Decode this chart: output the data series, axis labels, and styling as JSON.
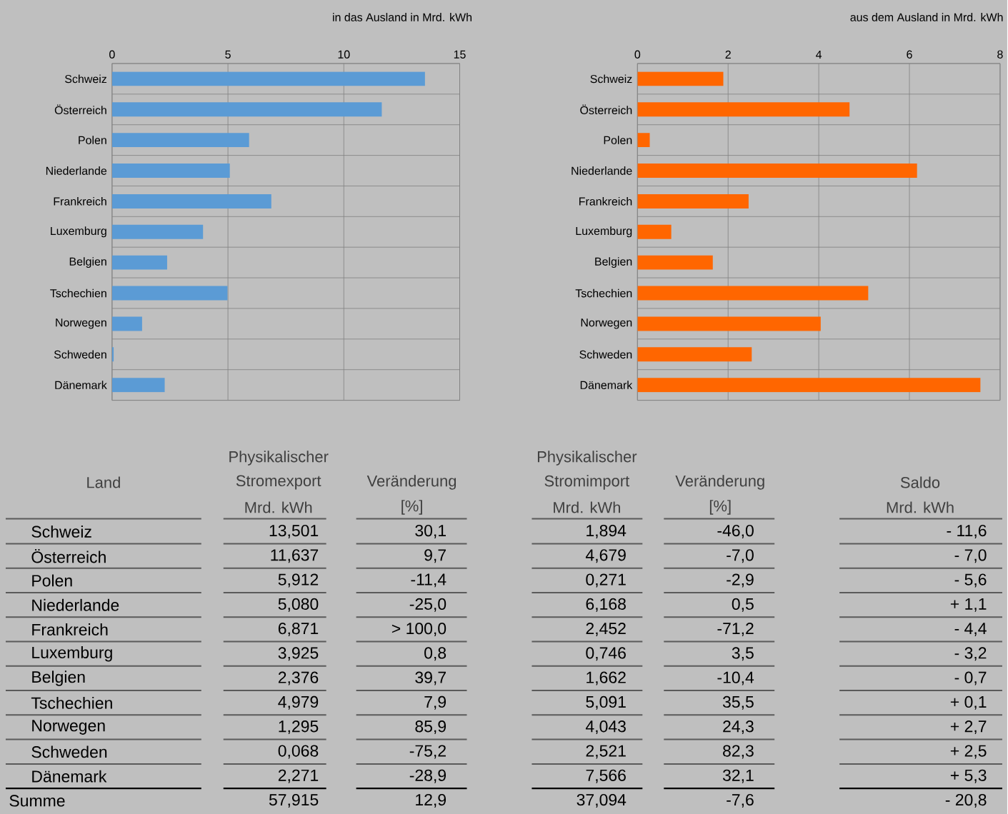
{
  "chart_data": [
    {
      "type": "bar",
      "orientation": "horizontal",
      "title": "in das Ausland in Mrd. kWh",
      "categories": [
        "Schweiz",
        "Österreich",
        "Polen",
        "Niederlande",
        "Frankreich",
        "Luxemburg",
        "Belgien",
        "Tschechien",
        "Norwegen",
        "Schweden",
        "Dänemark"
      ],
      "values": [
        13.501,
        11.637,
        5.912,
        5.08,
        6.871,
        3.925,
        2.376,
        4.979,
        1.295,
        0.068,
        2.271
      ],
      "value_labels": [
        "13,501",
        "11,637",
        "5,912",
        "5,080",
        "6,871",
        "3,925",
        "2,376",
        "4,979",
        "1,295",
        "0,068",
        "2,271"
      ],
      "color": "#5b9bd5",
      "xlim": [
        0,
        15
      ],
      "xticks": [
        0,
        5,
        10,
        15
      ],
      "grid": true
    },
    {
      "type": "bar",
      "orientation": "horizontal",
      "title": "aus dem Ausland in Mrd. kWh",
      "categories": [
        "Schweiz",
        "Österreich",
        "Polen",
        "Niederlande",
        "Frankreich",
        "Luxemburg",
        "Belgien",
        "Tschechien",
        "Norwegen",
        "Schweden",
        "Dänemark"
      ],
      "values": [
        1.894,
        4.679,
        0.271,
        6.168,
        2.452,
        0.746,
        1.662,
        5.091,
        4.043,
        2.521,
        7.566
      ],
      "value_labels": [
        "1,894",
        "4,679",
        "0,271",
        "6,168",
        "2,452",
        "0,746",
        "1,662",
        "5,091",
        "4,043",
        "2,521",
        "7,566"
      ],
      "color": "#ff6600",
      "xlim": [
        0,
        8
      ],
      "xticks": [
        0,
        2,
        4,
        6,
        8
      ],
      "grid": true
    },
    {
      "type": "other",
      "annotations": [
        "Land",
        "Physikalischer",
        "Stromexport",
        "Mrd. kWh",
        "Veränderung",
        "[%]",
        "Physikalischer",
        "Stromimport",
        "Mrd. kWh",
        "Veränderung",
        "[%]",
        "Saldo",
        "Mrd. kWh",
        "30,1",
        "-46,0",
        "- 11,6",
        "9,7",
        "-7,0",
        "- 7,0",
        "-11,4",
        "-2,9",
        "- 5,6",
        "-25,0",
        "0,5",
        "+ 1,1",
        "> 100,0",
        "-71,2",
        "- 4,4",
        "0,8",
        "3,5",
        "- 3,2",
        "39,7",
        "-10,4",
        "- 0,7",
        "7,9",
        "35,5",
        "+ 0,1",
        "85,9",
        "24,3",
        "+ 2,7",
        "-75,2",
        "82,3",
        "+ 2,5",
        "-28,9",
        "32,1",
        "+ 5,3",
        "Summe",
        "57,915",
        "12,9",
        "37,094",
        "-7,6",
        "- 20,8"
      ]
    }
  ]
}
